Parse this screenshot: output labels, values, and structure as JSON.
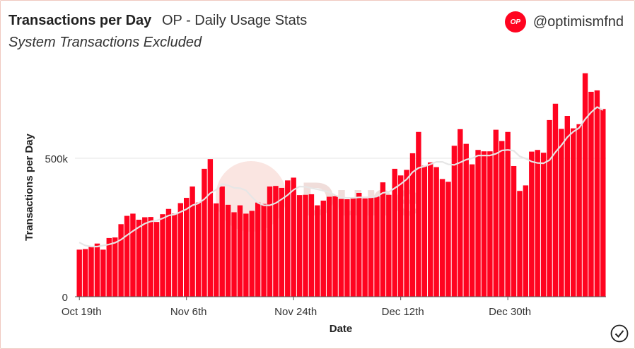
{
  "header": {
    "title": "Transactions per Day",
    "subtitle": "OP - Daily Usage Stats",
    "description": "System Transactions Excluded",
    "brand_logo_text": "OP",
    "handle": "@optimismfnd"
  },
  "watermark": "Dune",
  "colors": {
    "bar": "#ff0420",
    "moving_average": "#e6e6e6",
    "watermark": "#f2c8c4"
  },
  "icons": {
    "status": "check-circle-icon",
    "brand": "op-logo-icon"
  },
  "chart_data": {
    "type": "bar",
    "title": "Transactions per Day",
    "xlabel": "Date",
    "ylabel": "Transactions per Day",
    "ylim": [
      0,
      1000000
    ],
    "yticks": [
      0,
      500000
    ],
    "ytick_labels": [
      "0",
      "500k"
    ],
    "xtick_labels": [
      "Oct 19th",
      "Nov 6th",
      "Nov 24th",
      "Dec 12th",
      "Dec 30th"
    ],
    "start_date": "Oct 19th",
    "grid": "horizontal",
    "legend": "none",
    "series": [
      {
        "type": "bar",
        "values": [
          170000,
          172000,
          180000,
          192000,
          170000,
          212000,
          214000,
          262000,
          292000,
          300000,
          278000,
          287000,
          288000,
          270000,
          298000,
          317000,
          300000,
          338000,
          357000,
          398000,
          340000,
          462000,
          497000,
          337000,
          398000,
          332000,
          305000,
          330000,
          300000,
          310000,
          340000,
          335000,
          398000,
          400000,
          393000,
          420000,
          430000,
          367000,
          368000,
          370000,
          330000,
          347000,
          361000,
          363000,
          353000,
          352000,
          359000,
          375000,
          355000,
          359000,
          362000,
          413000,
          368000,
          462000,
          438000,
          458000,
          518000,
          595000,
          473000,
          485000,
          468000,
          425000,
          415000,
          545000,
          605000,
          552000,
          478000,
          530000,
          525000,
          525000,
          603000,
          562000,
          595000,
          472000,
          382000,
          402000,
          524000,
          530000,
          520000,
          638000,
          697000,
          606000,
          653000,
          608000,
          623000,
          807000,
          740000,
          745000,
          678000
        ]
      },
      {
        "type": "line",
        "name": "moving average",
        "values": [
          196000,
          185000,
          181000,
          181000,
          185000,
          189000,
          195000,
          206000,
          222000,
          237000,
          251000,
          264000,
          272000,
          275000,
          283000,
          293000,
          297000,
          306000,
          316000,
          330000,
          337000,
          352000,
          374000,
          386000,
          407000,
          402000,
          393000,
          392000,
          384000,
          360000,
          339000,
          330000,
          330000,
          338000,
          352000,
          367000,
          386000,
          398000,
          397000,
          392000,
          388000,
          383000,
          378000,
          366000,
          358000,
          357000,
          357000,
          359000,
          359000,
          359000,
          362000,
          375000,
          378000,
          392000,
          407000,
          424000,
          450000,
          465000,
          471000,
          478000,
          487000,
          487000,
          478000,
          476000,
          485000,
          495000,
          500000,
          510000,
          510000,
          510000,
          516000,
          528000,
          530000,
          527000,
          507000,
          499000,
          488000,
          483000,
          482000,
          493000,
          522000,
          547000,
          576000,
          596000,
          610000,
          641000,
          666000,
          685000,
          674000
        ]
      }
    ]
  }
}
